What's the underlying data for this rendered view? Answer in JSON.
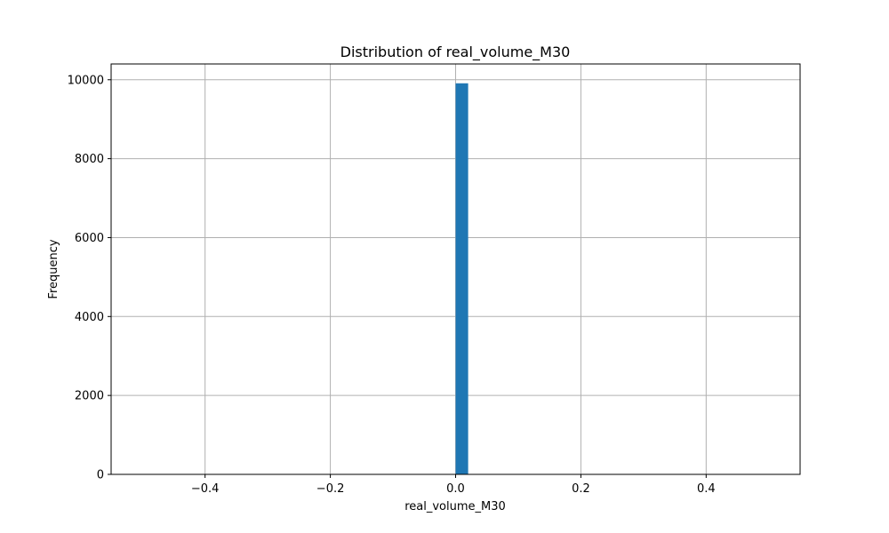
{
  "chart_data": {
    "type": "bar",
    "title": "Distribution of real_volume_M30",
    "xlabel": "real_volume_M30",
    "ylabel": "Frequency",
    "xlim": [
      -0.55,
      0.55
    ],
    "ylim": [
      0,
      10400
    ],
    "xticks": [
      -0.4,
      -0.2,
      0.0,
      0.2,
      0.4
    ],
    "xtick_labels": [
      "−0.4",
      "−0.2",
      "0.0",
      "0.2",
      "0.4"
    ],
    "yticks": [
      0,
      2000,
      4000,
      6000,
      8000,
      10000
    ],
    "ytick_labels": [
      "0",
      "2000",
      "4000",
      "6000",
      "8000",
      "10000"
    ],
    "grid": true,
    "bar_color": "#1f77b4",
    "bins": [
      {
        "x0": 0.0,
        "x1": 0.02,
        "count": 9910
      }
    ]
  }
}
